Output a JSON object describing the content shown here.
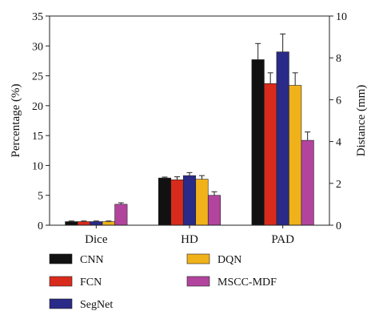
{
  "chart_data": {
    "type": "bar",
    "categories": [
      "Dice",
      "HD",
      "PAD"
    ],
    "series": [
      {
        "name": "CNN",
        "color": "#111111",
        "values": [
          0.6,
          7.9,
          27.7
        ],
        "errors": [
          0.1,
          0.15,
          2.7
        ]
      },
      {
        "name": "FCN",
        "color": "#d92b1c",
        "values": [
          0.6,
          7.6,
          23.7
        ],
        "errors": [
          0.1,
          0.5,
          1.8
        ]
      },
      {
        "name": "SegNet",
        "color": "#2a2a88",
        "values": [
          0.6,
          8.3,
          29.0
        ],
        "errors": [
          0.1,
          0.5,
          3.0
        ]
      },
      {
        "name": "DQN",
        "color": "#f0b21a",
        "values": [
          0.6,
          7.7,
          23.4
        ],
        "errors": [
          0.1,
          0.6,
          2.1
        ]
      },
      {
        "name": "MSCC-MDF",
        "color": "#b2449e",
        "values": [
          3.5,
          5.0,
          14.2
        ],
        "errors": [
          0.25,
          0.6,
          1.4
        ]
      }
    ],
    "ylabel": "Percentage (%)",
    "y2label": "Distance (mm)",
    "ylim": [
      0,
      35
    ],
    "y2lim": [
      0,
      10
    ],
    "yticks": [
      0,
      5,
      10,
      15,
      20,
      25,
      30,
      35
    ],
    "y2ticks": [
      0,
      2,
      4,
      6,
      8,
      10
    ],
    "grid": false,
    "legend_position": "bottom"
  }
}
